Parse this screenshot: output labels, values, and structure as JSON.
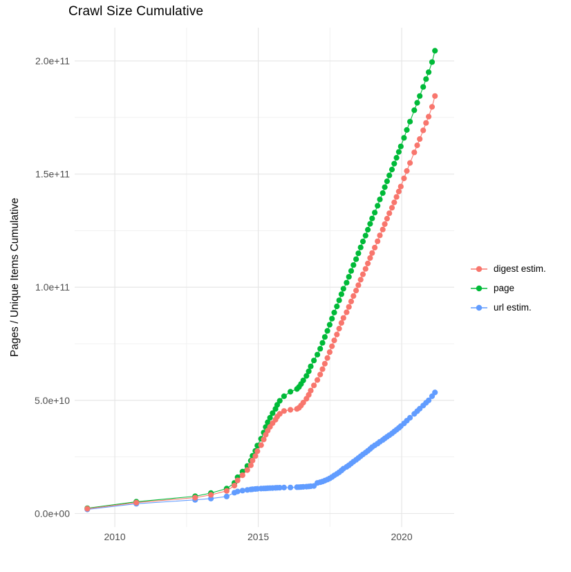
{
  "page": {
    "background_color": "#ffffff"
  },
  "chart_data": {
    "type": "line",
    "title": "Crawl Size Cumulative",
    "xlabel": "",
    "ylabel": "Pages / Unique Items Cumulative",
    "legend_position": "right-center",
    "grid": true,
    "points_style": "dot-with-line",
    "x_axis": {
      "range": [
        2008.6,
        2021.83
      ],
      "ticks": [
        {
          "value": 2010,
          "label": "2010"
        },
        {
          "value": 2015,
          "label": "2015"
        },
        {
          "value": 2020,
          "label": "2020"
        }
      ],
      "minor": [
        2012.5,
        2017.5
      ]
    },
    "y_axis": {
      "units": "items (values stored as multiples of 1e9)",
      "range_e9": [
        -6,
        214.7
      ],
      "ticks": [
        {
          "value_e9": 0,
          "label": "0.0e+00"
        },
        {
          "value_e9": 50,
          "label": "5.0e+10"
        },
        {
          "value_e9": 100,
          "label": "1.0e+11"
        },
        {
          "value_e9": 150,
          "label": "1.5e+11"
        },
        {
          "value_e9": 200,
          "label": "2.0e+11"
        }
      ],
      "minor_e9": [
        25,
        75,
        125,
        175
      ]
    },
    "x_years": [
      2009.04,
      2010.75,
      2012.8,
      2013.35,
      2013.9,
      2014.17,
      2014.28,
      2014.45,
      2014.62,
      2014.74,
      2014.8,
      2014.9,
      2014.97,
      2015.1,
      2015.19,
      2015.26,
      2015.33,
      2015.41,
      2015.5,
      2015.6,
      2015.66,
      2015.75,
      2015.9,
      2016.12,
      2016.35,
      2016.42,
      2016.49,
      2016.57,
      2016.68,
      2016.76,
      2016.83,
      2016.94,
      2017.06,
      2017.16,
      2017.24,
      2017.32,
      2017.41,
      2017.49,
      2017.57,
      2017.65,
      2017.74,
      2017.82,
      2017.9,
      2017.97,
      2018.08,
      2018.16,
      2018.24,
      2018.32,
      2018.41,
      2018.49,
      2018.57,
      2018.65,
      2018.74,
      2018.82,
      2018.9,
      2018.97,
      2019.06,
      2019.16,
      2019.24,
      2019.34,
      2019.41,
      2019.49,
      2019.57,
      2019.66,
      2019.74,
      2019.82,
      2019.9,
      2019.97,
      2020.08,
      2020.18,
      2020.29,
      2020.44,
      2020.54,
      2020.63,
      2020.75,
      2020.85,
      2020.94,
      2021.06,
      2021.16
    ],
    "series": [
      {
        "name": "digest estim.",
        "color": "#F8766D",
        "values_e9": [
          2.1,
          4.8,
          7.0,
          8.2,
          10.0,
          12.3,
          14.6,
          16.9,
          19.2,
          21.3,
          23.4,
          25.4,
          27.5,
          30.2,
          32.7,
          34.8,
          36.6,
          38.3,
          39.9,
          41.4,
          42.8,
          44.0,
          45.3,
          45.8,
          46.2,
          46.7,
          47.7,
          49.0,
          50.7,
          52.4,
          54.3,
          56.6,
          59.0,
          61.4,
          63.8,
          66.2,
          68.7,
          71.3,
          73.9,
          76.5,
          79.1,
          81.7,
          84.2,
          86.4,
          88.9,
          91.3,
          93.7,
          96.1,
          98.5,
          100.9,
          103.3,
          105.7,
          108.1,
          110.5,
          112.9,
          115.1,
          117.5,
          120.3,
          122.9,
          125.5,
          127.9,
          130.3,
          132.7,
          135.1,
          137.5,
          139.9,
          142.3,
          144.5,
          148.1,
          151.4,
          154.9,
          159.6,
          162.7,
          165.5,
          169.3,
          172.6,
          175.4,
          179.7,
          184.5
        ]
      },
      {
        "name": "page",
        "color": "#00BA38",
        "values_e9": [
          2.3,
          5.2,
          7.6,
          9.0,
          11.0,
          13.5,
          16.0,
          18.5,
          21.0,
          23.3,
          25.5,
          27.7,
          30.0,
          33.0,
          35.8,
          38.2,
          40.3,
          42.3,
          44.3,
          46.2,
          48.0,
          49.8,
          51.8,
          53.8,
          55.0,
          55.9,
          57.2,
          58.8,
          60.8,
          62.8,
          65.0,
          67.6,
          70.2,
          72.8,
          75.4,
          78.0,
          80.7,
          83.4,
          86.1,
          88.8,
          91.5,
          94.2,
          96.9,
          99.3,
          102.0,
          104.6,
          107.2,
          109.8,
          112.4,
          115.0,
          117.6,
          120.2,
          122.8,
          125.4,
          128.0,
          130.4,
          133.0,
          136.0,
          138.8,
          141.6,
          144.2,
          146.8,
          149.4,
          152.0,
          154.6,
          157.2,
          159.8,
          162.2,
          166.0,
          169.5,
          173.2,
          178.2,
          181.5,
          184.5,
          188.5,
          192.0,
          195.0,
          199.5,
          204.5
        ]
      },
      {
        "name": "url estim.",
        "color": "#619CFF",
        "values_e9": [
          1.8,
          4.3,
          6.0,
          6.6,
          7.5,
          9.2,
          9.7,
          10.1,
          10.4,
          10.6,
          10.7,
          10.8,
          10.9,
          11.0,
          11.05,
          11.1,
          11.15,
          11.2,
          11.25,
          11.3,
          11.35,
          11.4,
          11.45,
          11.5,
          11.6,
          11.65,
          11.7,
          11.75,
          11.85,
          11.95,
          12.05,
          12.15,
          13.5,
          13.8,
          14.1,
          14.5,
          15.0,
          15.5,
          16.1,
          16.8,
          17.5,
          18.2,
          19.0,
          19.8,
          20.6,
          21.3,
          22.1,
          22.9,
          23.7,
          24.5,
          25.3,
          26.1,
          26.9,
          27.7,
          28.5,
          29.3,
          30.1,
          30.9,
          31.7,
          32.5,
          33.2,
          33.9,
          34.6,
          35.4,
          36.2,
          37.0,
          37.8,
          38.6,
          39.8,
          41.0,
          42.3,
          44.0,
          45.2,
          46.3,
          47.7,
          48.9,
          50.0,
          51.8,
          53.5
        ]
      }
    ],
    "draw_order": [
      1,
      2,
      0
    ],
    "grid_colors": {
      "major": "#e4e4e4",
      "minor": "#f1f1f1"
    }
  }
}
